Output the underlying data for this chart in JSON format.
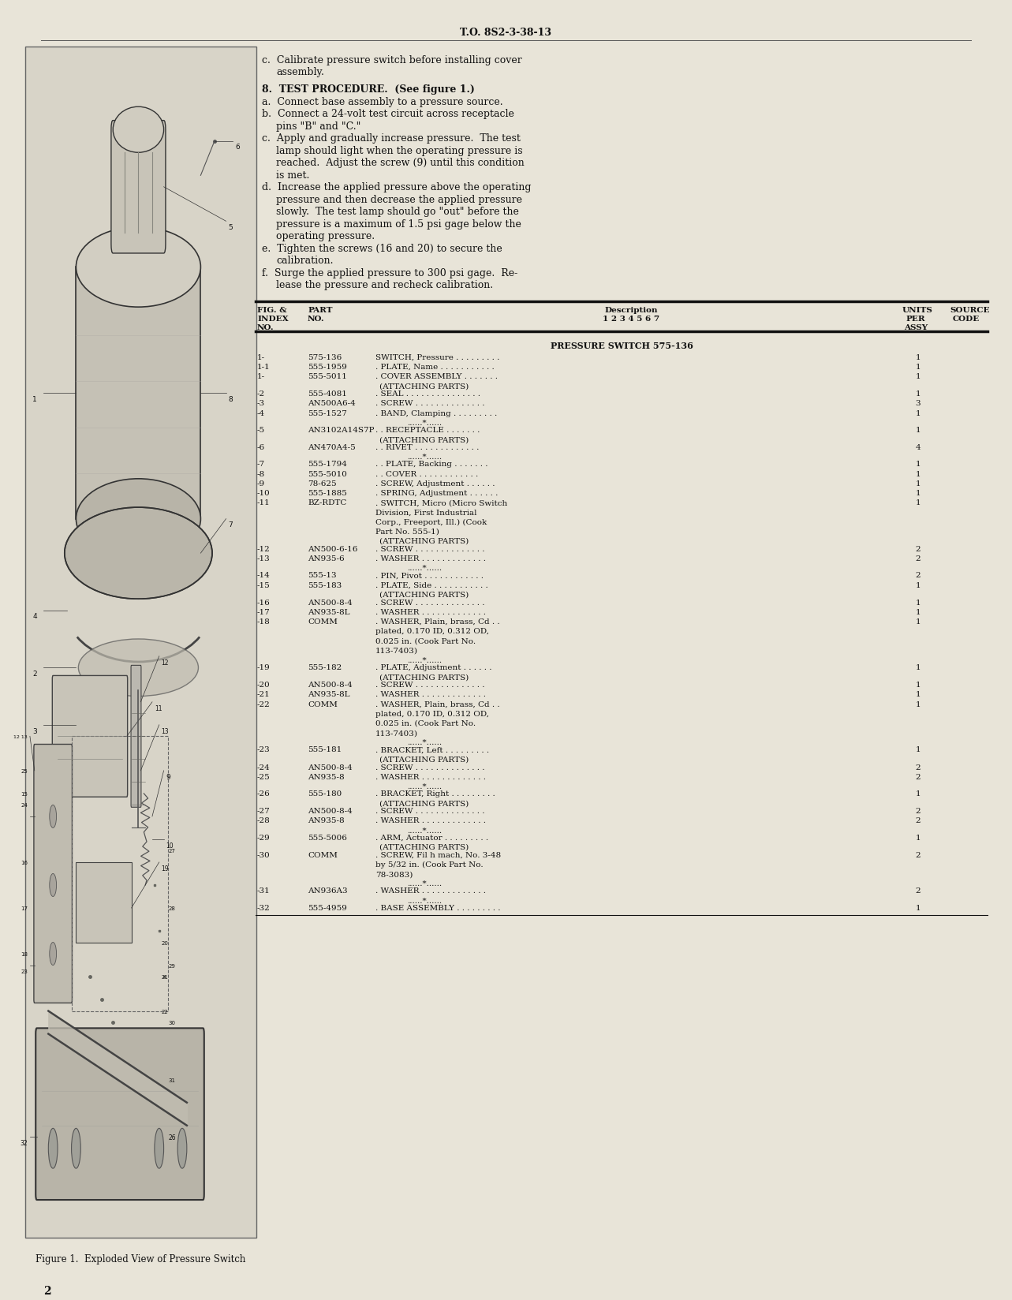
{
  "page_background": "#e8e4d8",
  "header_text": "T.O. 8S2-3-38-13",
  "page_number": "2",
  "figure_caption": "Figure 1.  Exploded View of Pressure Switch",
  "table_section_title": "PRESSURE SWITCH 575-136",
  "table_rows": [
    {
      "fig": "1-",
      "part": "575-136",
      "desc": "SWITCH, Pressure . . . . . . . . .",
      "units": "1"
    },
    {
      "fig": "1-1",
      "part": "555-1959",
      "desc": ". PLATE, Name . . . . . . . . . . .",
      "units": "1"
    },
    {
      "fig": "1-",
      "part": "555-5011",
      "desc": ". COVER ASSEMBLY . . . . . . .",
      "units": "1"
    },
    {
      "fig": "",
      "part": "",
      "desc": "(ATTACHING PARTS)",
      "units": ""
    },
    {
      "fig": "-2",
      "part": "555-4081",
      "desc": ". SEAL . . . . . . . . . . . . . . .",
      "units": "1"
    },
    {
      "fig": "-3",
      "part": "AN500A6-4",
      "desc": ". SCREW . . . . . . . . . . . . . .",
      "units": "3"
    },
    {
      "fig": "-4",
      "part": "555-1527",
      "desc": ". BAND, Clamping . . . . . . . . .",
      "units": "1"
    },
    {
      "fig": "",
      "part": "",
      "desc": "......*......",
      "units": ""
    },
    {
      "fig": "-5",
      "part": "AN3102A14S7P",
      "desc": ". . RECEPTACLE . . . . . . .",
      "units": "1"
    },
    {
      "fig": "",
      "part": "",
      "desc": "(ATTACHING PARTS)",
      "units": ""
    },
    {
      "fig": "-6",
      "part": "AN470A4-5",
      "desc": ". . RIVET . . . . . . . . . . . . .",
      "units": "4"
    },
    {
      "fig": "",
      "part": "",
      "desc": "......*......",
      "units": ""
    },
    {
      "fig": "-7",
      "part": "555-1794",
      "desc": ". . PLATE, Backing . . . . . . .",
      "units": "1"
    },
    {
      "fig": "-8",
      "part": "555-5010",
      "desc": ". . COVER . . . . . . . . . . . .",
      "units": "1"
    },
    {
      "fig": "-9",
      "part": "78-625",
      "desc": ". SCREW, Adjustment . . . . . .",
      "units": "1"
    },
    {
      "fig": "-10",
      "part": "555-1885",
      "desc": ". SPRING, Adjustment . . . . . .",
      "units": "1"
    },
    {
      "fig": "-11",
      "part": "BZ-RDTC",
      "desc": ". SWITCH, Micro (Micro Switch\n  Division, First Industrial\n  Corp., Freeport, Ill.) (Cook\n  Part No. 555-1)",
      "units": "1"
    },
    {
      "fig": "",
      "part": "",
      "desc": "(ATTACHING PARTS)",
      "units": ""
    },
    {
      "fig": "-12",
      "part": "AN500-6-16",
      "desc": ". SCREW . . . . . . . . . . . . . .",
      "units": "2"
    },
    {
      "fig": "-13",
      "part": "AN935-6",
      "desc": ". WASHER . . . . . . . . . . . . .",
      "units": "2"
    },
    {
      "fig": "",
      "part": "",
      "desc": "......*......",
      "units": ""
    },
    {
      "fig": "-14",
      "part": "555-13",
      "desc": ". PIN, Pivot . . . . . . . . . . . .",
      "units": "2"
    },
    {
      "fig": "-15",
      "part": "555-183",
      "desc": ". PLATE, Side . . . . . . . . . . .",
      "units": "1"
    },
    {
      "fig": "",
      "part": "",
      "desc": "(ATTACHING PARTS)",
      "units": ""
    },
    {
      "fig": "-16",
      "part": "AN500-8-4",
      "desc": ". SCREW . . . . . . . . . . . . . .",
      "units": "1"
    },
    {
      "fig": "-17",
      "part": "AN935-8L",
      "desc": ". WASHER . . . . . . . . . . . . .",
      "units": "1"
    },
    {
      "fig": "-18",
      "part": "COMM",
      "desc": ". WASHER, Plain, brass, Cd . .\n  plated, 0.170 ID, 0.312 OD,\n  0.025 in. (Cook Part No.\n  113-7403)",
      "units": "1"
    },
    {
      "fig": "",
      "part": "",
      "desc": "......*......",
      "units": ""
    },
    {
      "fig": "-19",
      "part": "555-182",
      "desc": ". PLATE, Adjustment . . . . . .",
      "units": "1"
    },
    {
      "fig": "",
      "part": "",
      "desc": "(ATTACHING PARTS)",
      "units": ""
    },
    {
      "fig": "-20",
      "part": "AN500-8-4",
      "desc": ". SCREW . . . . . . . . . . . . . .",
      "units": "1"
    },
    {
      "fig": "-21",
      "part": "AN935-8L",
      "desc": ". WASHER . . . . . . . . . . . . .",
      "units": "1"
    },
    {
      "fig": "-22",
      "part": "COMM",
      "desc": ". WASHER, Plain, brass, Cd . .\n  plated, 0.170 ID, 0.312 OD,\n  0.025 in. (Cook Part No.\n  113-7403)",
      "units": "1"
    },
    {
      "fig": "",
      "part": "",
      "desc": "......*......",
      "units": ""
    },
    {
      "fig": "-23",
      "part": "555-181",
      "desc": ". BRACKET, Left . . . . . . . . .",
      "units": "1"
    },
    {
      "fig": "",
      "part": "",
      "desc": "(ATTACHING PARTS)",
      "units": ""
    },
    {
      "fig": "-24",
      "part": "AN500-8-4",
      "desc": ". SCREW . . . . . . . . . . . . . .",
      "units": "2"
    },
    {
      "fig": "-25",
      "part": "AN935-8",
      "desc": ". WASHER . . . . . . . . . . . . .",
      "units": "2"
    },
    {
      "fig": "",
      "part": "",
      "desc": "......*......",
      "units": ""
    },
    {
      "fig": "-26",
      "part": "555-180",
      "desc": ". BRACKET, Right . . . . . . . . .",
      "units": "1"
    },
    {
      "fig": "",
      "part": "",
      "desc": "(ATTACHING PARTS)",
      "units": ""
    },
    {
      "fig": "-27",
      "part": "AN500-8-4",
      "desc": ". SCREW . . . . . . . . . . . . . .",
      "units": "2"
    },
    {
      "fig": "-28",
      "part": "AN935-8",
      "desc": ". WASHER . . . . . . . . . . . . .",
      "units": "2"
    },
    {
      "fig": "",
      "part": "",
      "desc": "......*......",
      "units": ""
    },
    {
      "fig": "-29",
      "part": "555-5006",
      "desc": ". ARM, Actuator . . . . . . . . .",
      "units": "1"
    },
    {
      "fig": "",
      "part": "",
      "desc": "(ATTACHING PARTS)",
      "units": ""
    },
    {
      "fig": "-30",
      "part": "COMM",
      "desc": ". SCREW, Fil h mach, No. 3-48\n  by 5/32 in. (Cook Part No.\n  78-3083)",
      "units": "2"
    },
    {
      "fig": "",
      "part": "",
      "desc": "......*......",
      "units": ""
    },
    {
      "fig": "-31",
      "part": "AN936A3",
      "desc": ". WASHER . . . . . . . . . . . . .",
      "units": "2"
    },
    {
      "fig": "",
      "part": "",
      "desc": "......*......",
      "units": ""
    },
    {
      "fig": "-32",
      "part": "555-4959",
      "desc": ". BASE ASSEMBLY . . . . . . . . .",
      "units": "1"
    }
  ],
  "right_paragraphs": [
    {
      "indent": false,
      "text": "c.  Calibrate pressure switch before installing cover"
    },
    {
      "indent": true,
      "text": "assembly."
    },
    {
      "indent": false,
      "text": ""
    },
    {
      "indent": false,
      "bold": true,
      "text": "8.  TEST PROCEDURE.  (See figure 1.)"
    },
    {
      "indent": false,
      "text": "a.  Connect base assembly to a pressure source."
    },
    {
      "indent": false,
      "text": "b.  Connect a 24-volt test circuit across receptacle"
    },
    {
      "indent": true,
      "text": "pins \"B\" and \"C.\""
    },
    {
      "indent": false,
      "text": "c.  Apply and gradually increase pressure.  The test"
    },
    {
      "indent": true,
      "text": "lamp should light when the operating pressure is"
    },
    {
      "indent": true,
      "text": "reached.  Adjust the screw (9) until this condition"
    },
    {
      "indent": true,
      "text": "is met."
    },
    {
      "indent": false,
      "text": "d.  Increase the applied pressure above the operating"
    },
    {
      "indent": true,
      "text": "pressure and then decrease the applied pressure"
    },
    {
      "indent": true,
      "text": "slowly.  The test lamp should go \"out\" before the"
    },
    {
      "indent": true,
      "text": "pressure is a maximum of 1.5 psi gage below the"
    },
    {
      "indent": true,
      "text": "operating pressure."
    },
    {
      "indent": false,
      "text": "e.  Tighten the screws (16 and 20) to secure the"
    },
    {
      "indent": true,
      "text": "calibration."
    },
    {
      "indent": false,
      "text": "f.  Surge the applied pressure to 300 psi gage.  Re-"
    },
    {
      "indent": true,
      "text": "lease the pressure and recheck calibration."
    }
  ]
}
